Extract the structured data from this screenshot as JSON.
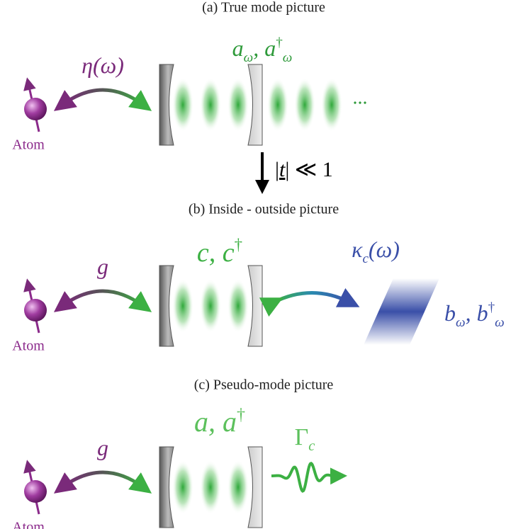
{
  "panels": [
    {
      "title": "(a) True mode picture",
      "atom": "Atom",
      "coupling": [
        {
          "text": "η",
          "style": "italic"
        },
        {
          "text": "(ω)",
          "style": "italic"
        }
      ],
      "mode": [
        {
          "text": "a",
          "style": "italic"
        },
        {
          "text": "ω",
          "style": "sub"
        },
        {
          "text": ", a",
          "style": "italic"
        },
        {
          "text": "†",
          "style": "sup"
        },
        {
          "text": "ω",
          "style": "sub"
        }
      ],
      "ellipsis": "..."
    },
    {
      "title": "(b) Inside - outside picture",
      "atom": "Atom",
      "coupling": [
        {
          "text": "g",
          "style": "italic"
        }
      ],
      "mode": [
        {
          "text": "c, c",
          "style": "italic"
        },
        {
          "text": "†",
          "style": "sup"
        }
      ],
      "decay": [
        {
          "text": "κ",
          "style": "italic"
        },
        {
          "text": "c",
          "style": "sub"
        },
        {
          "text": "(ω)",
          "style": "italic"
        }
      ],
      "bath": [
        {
          "text": "b",
          "style": "italic"
        },
        {
          "text": "ω",
          "style": "sub"
        },
        {
          "text": ", b",
          "style": "italic"
        },
        {
          "text": "†",
          "style": "sup"
        },
        {
          "text": "ω",
          "style": "sub"
        }
      ]
    },
    {
      "title": "(c) Pseudo-mode picture",
      "atom": "Atom",
      "coupling": [
        {
          "text": "g",
          "style": "italic"
        }
      ],
      "mode": [
        {
          "text": "a, a",
          "style": "italic"
        },
        {
          "text": "†",
          "style": "sup"
        }
      ],
      "decay": [
        {
          "text": "Γ"
        },
        {
          "text": "c",
          "style": "sub"
        }
      ]
    }
  ],
  "transition": [
    {
      "text": "|"
    },
    {
      "text": "t",
      "style": "underline"
    },
    {
      "text": "| ≪ 1"
    }
  ]
}
